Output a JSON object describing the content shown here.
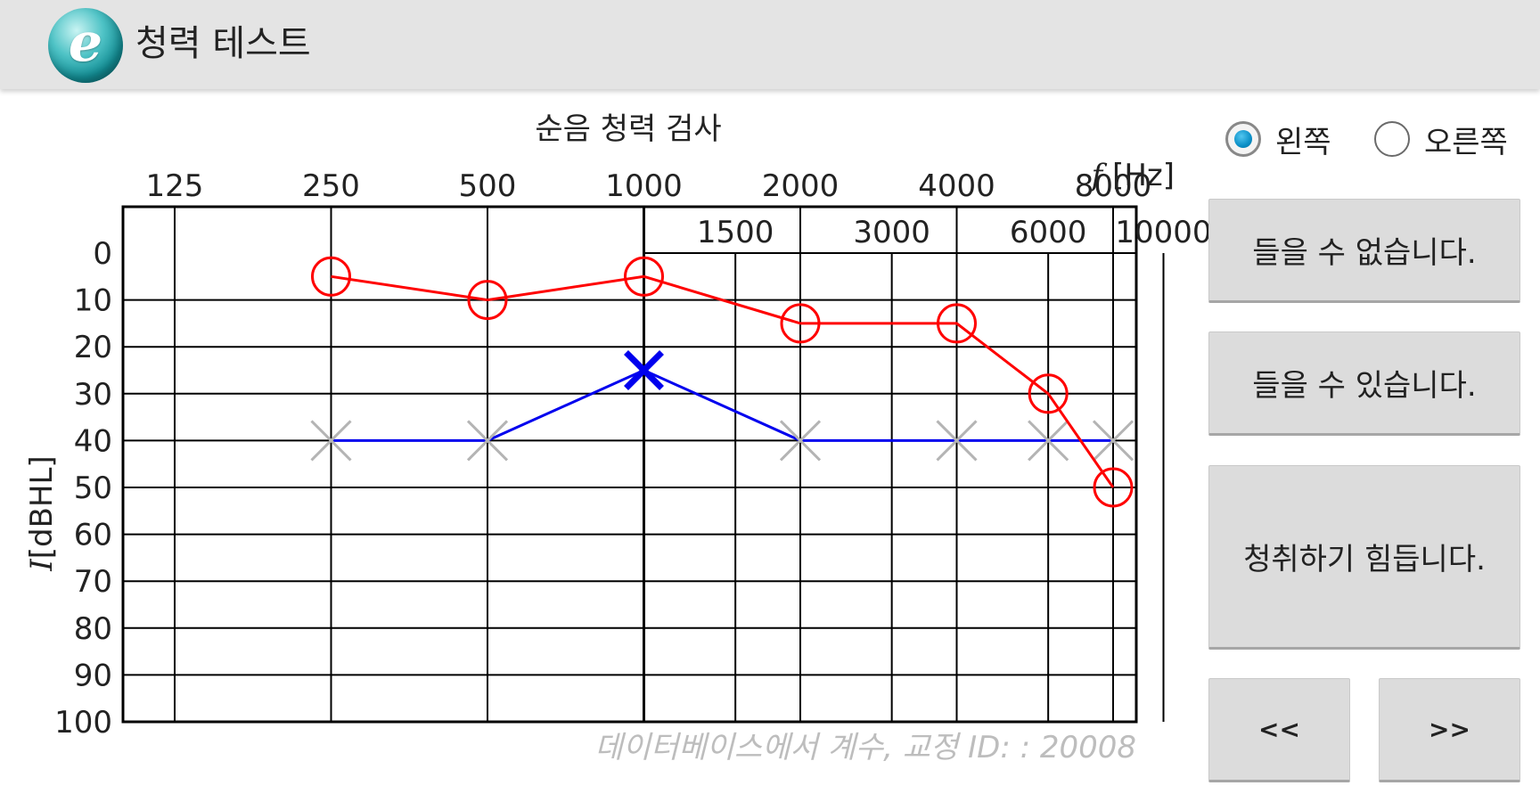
{
  "app": {
    "title": "청력 테스트",
    "logo_letter": "e"
  },
  "chart_data": {
    "type": "line",
    "title": "순음 청력 검사",
    "xlabel": "f [Hz]",
    "ylabel": "I [dBHL]",
    "x_top_ticks": [
      "125",
      "250",
      "500",
      "1000",
      "2000",
      "4000",
      "8000"
    ],
    "x_mid_ticks": [
      "1500",
      "3000",
      "6000",
      "10000"
    ],
    "y_ticks": [
      "0",
      "10",
      "20",
      "30",
      "40",
      "50",
      "60",
      "70",
      "80",
      "90",
      "100"
    ],
    "ylim": [
      0,
      100
    ],
    "y_inverted": true,
    "grid": true,
    "series": [
      {
        "color": "#ff0000",
        "marker": "circle",
        "x": [
          250,
          500,
          1000,
          2000,
          4000,
          6000,
          8000
        ],
        "y": [
          5,
          10,
          5,
          15,
          15,
          30,
          50
        ]
      },
      {
        "color": "#0000ee",
        "marker": "cross",
        "x": [
          250,
          500,
          1000,
          2000,
          4000,
          6000,
          8000
        ],
        "y": [
          40,
          40,
          25,
          40,
          40,
          40,
          40
        ],
        "active_x": 1000
      }
    ],
    "footer": "데이터베이스에서 계수, 교정 ID: : 20008"
  },
  "ear_selector": {
    "options": [
      {
        "label": "왼쪽",
        "checked": true
      },
      {
        "label": "오른쪽",
        "checked": false
      }
    ]
  },
  "buttons": {
    "cannot_hear": "들을 수 없습니다.",
    "can_hear": "들을 수 있습니다.",
    "hard_to_hear": "청취하기 힘듭니다.",
    "prev": "<<",
    "next": ">>"
  },
  "colors": {
    "right_ear_series": "#ff0000",
    "left_ear_series": "#0000ee",
    "inactive_marker": "#b4b4b4",
    "radio_accent": "#0a8fc7",
    "footer_text": "#bdbdbd"
  }
}
